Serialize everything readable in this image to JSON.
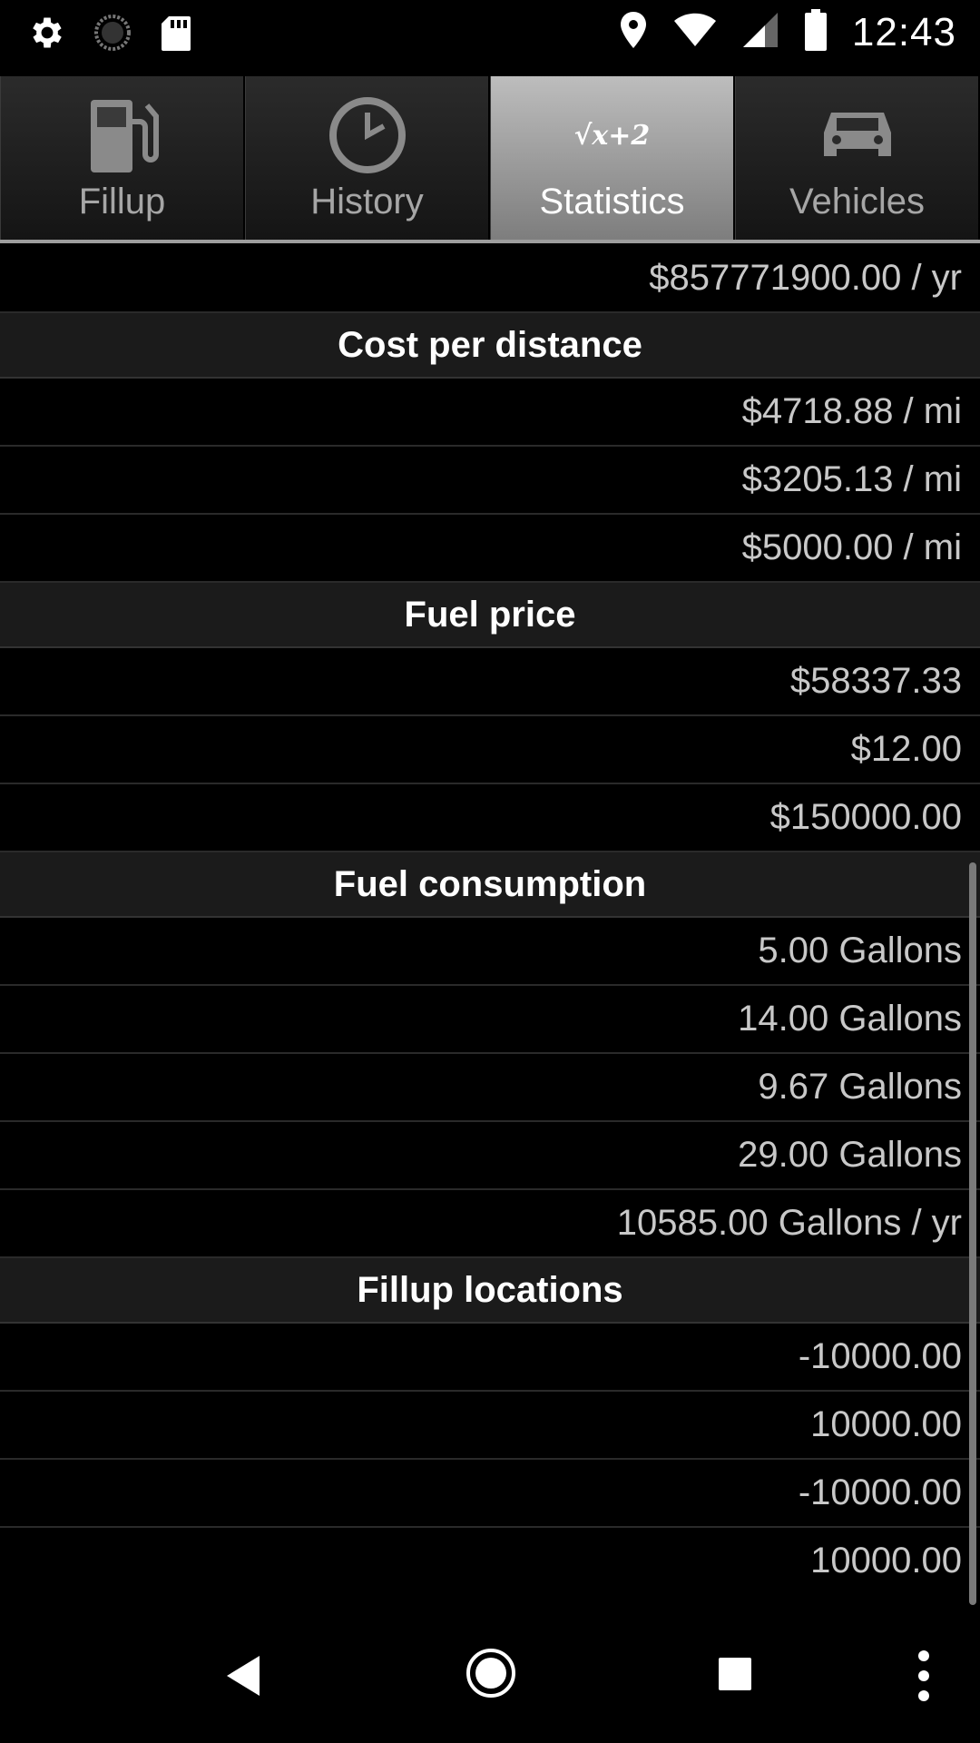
{
  "status_bar": {
    "time": "12:43",
    "left_icons": [
      "gear-icon",
      "sync-icon",
      "sd-card-icon"
    ],
    "right_icons": [
      "location-icon",
      "wifi-icon",
      "signal-icon",
      "battery-icon"
    ]
  },
  "tabs": [
    {
      "label": "Fillup",
      "icon": "fuel-pump-icon",
      "selected": false
    },
    {
      "label": "History",
      "icon": "clock-icon",
      "selected": false
    },
    {
      "label": "Statistics",
      "icon": "sqrt-formula-icon",
      "selected": true,
      "icon_text": "√x+2"
    },
    {
      "label": "Vehicles",
      "icon": "car-icon",
      "selected": false
    }
  ],
  "top_value": "$857771900.00 / yr",
  "sections": [
    {
      "title": "Cost per distance",
      "values": [
        "$4718.88 / mi",
        "$3205.13 / mi",
        "$5000.00 / mi"
      ]
    },
    {
      "title": "Fuel price",
      "values": [
        "$58337.33",
        "$12.00",
        "$150000.00"
      ]
    },
    {
      "title": "Fuel consumption",
      "values": [
        "5.00 Gallons",
        "14.00 Gallons",
        "9.67 Gallons",
        "29.00 Gallons",
        "10585.00 Gallons / yr"
      ]
    },
    {
      "title": "Fillup locations",
      "values": [
        "-10000.00",
        "10000.00",
        "-10000.00",
        "10000.00"
      ]
    }
  ],
  "nav_bar": {
    "buttons": [
      "back-icon",
      "home-icon",
      "recents-icon",
      "overflow-menu-icon"
    ]
  }
}
